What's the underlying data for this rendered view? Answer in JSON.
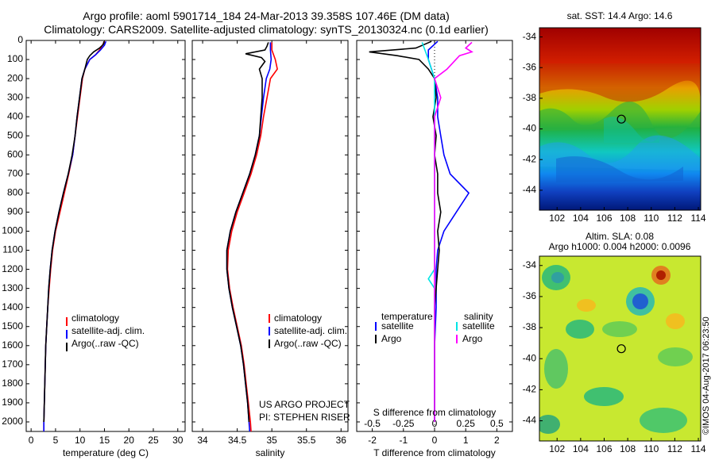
{
  "header": {
    "line1": "Argo profile: aoml 5901714_184 24-Mar-2013 39.358S 107.46E (DM data)",
    "line2": "Climatology: CARS2009. Satellite-adjusted climatology: synTS_20130324.nc (0.1d earlier)"
  },
  "colors": {
    "climatology": "#ff0000",
    "satellite": "#0000ff",
    "argo": "#000000",
    "sal_satellite": "#00e5e5",
    "sal_argo": "#ff00ff"
  },
  "chart_data": [
    {
      "type": "line",
      "id": "temperature",
      "xlabel": "temperature (deg C)",
      "ylabel": "",
      "xlim": [
        -1,
        31.5
      ],
      "ylim": [
        2050,
        0
      ],
      "xticks": [
        0,
        5,
        10,
        15,
        20,
        25,
        30
      ],
      "yticks": [
        0,
        100,
        200,
        300,
        400,
        500,
        600,
        700,
        800,
        900,
        1000,
        1100,
        1200,
        1300,
        1400,
        1500,
        1600,
        1700,
        1800,
        1900,
        2000
      ],
      "legend": [
        "climatology",
        "satellite-adj. clim.",
        "Argo(..raw -QC)"
      ],
      "series": [
        {
          "name": "climatology",
          "color": "#ff0000",
          "points": [
            [
              15.0,
              5
            ],
            [
              14.6,
              25
            ],
            [
              14.0,
              50
            ],
            [
              13.2,
              75
            ],
            [
              12.0,
              100
            ],
            [
              11.0,
              150
            ],
            [
              10.5,
              200
            ],
            [
              10.0,
              300
            ],
            [
              9.5,
              400
            ],
            [
              9.0,
              500
            ],
            [
              8.5,
              600
            ],
            [
              7.7,
              700
            ],
            [
              6.8,
              800
            ],
            [
              5.9,
              900
            ],
            [
              5.0,
              1000
            ],
            [
              4.4,
              1100
            ],
            [
              4.0,
              1200
            ],
            [
              3.7,
              1300
            ],
            [
              3.4,
              1400
            ],
            [
              3.2,
              1500
            ],
            [
              3.0,
              1600
            ],
            [
              2.9,
              1700
            ],
            [
              2.8,
              1800
            ],
            [
              2.7,
              1900
            ],
            [
              2.6,
              2000
            ],
            [
              2.6,
              2050
            ]
          ]
        },
        {
          "name": "satellite-adj. clim.",
          "color": "#0000ff",
          "points": [
            [
              15.3,
              5
            ],
            [
              15.0,
              25
            ],
            [
              14.2,
              50
            ],
            [
              13.2,
              75
            ],
            [
              12.0,
              100
            ],
            [
              11.0,
              150
            ],
            [
              10.4,
              200
            ],
            [
              9.9,
              300
            ],
            [
              9.4,
              400
            ],
            [
              9.0,
              500
            ],
            [
              8.5,
              600
            ],
            [
              7.6,
              700
            ],
            [
              6.6,
              800
            ],
            [
              5.7,
              900
            ],
            [
              4.9,
              1000
            ],
            [
              4.3,
              1100
            ],
            [
              3.9,
              1200
            ],
            [
              3.6,
              1300
            ],
            [
              3.4,
              1400
            ],
            [
              3.2,
              1500
            ],
            [
              3.0,
              1600
            ],
            [
              2.9,
              1700
            ],
            [
              2.8,
              1800
            ],
            [
              2.7,
              1900
            ],
            [
              2.6,
              2000
            ],
            [
              2.6,
              2050
            ]
          ]
        },
        {
          "name": "Argo(..raw -QC)",
          "color": "#000000",
          "points": [
            [
              14.9,
              5
            ],
            [
              14.8,
              20
            ],
            [
              14.0,
              40
            ],
            [
              12.8,
              60
            ],
            [
              12.0,
              80
            ],
            [
              11.5,
              100
            ],
            [
              11.0,
              150
            ],
            [
              10.4,
              200
            ],
            [
              9.9,
              300
            ],
            [
              9.4,
              400
            ],
            [
              9.0,
              500
            ],
            [
              8.4,
              600
            ],
            [
              7.6,
              700
            ],
            [
              6.6,
              800
            ],
            [
              5.7,
              900
            ],
            [
              4.9,
              1000
            ],
            [
              4.3,
              1100
            ],
            [
              3.9,
              1200
            ],
            [
              3.6,
              1300
            ],
            [
              3.4,
              1400
            ],
            [
              3.2,
              1500
            ],
            [
              3.0,
              1600
            ],
            [
              2.9,
              1700
            ],
            [
              2.8,
              1800
            ],
            [
              2.7,
              1900
            ],
            [
              2.6,
              2000
            ]
          ]
        }
      ]
    },
    {
      "type": "line",
      "id": "salinity",
      "xlabel": "salinity",
      "ylabel": "",
      "xlim": [
        33.85,
        36.1
      ],
      "ylim": [
        2050,
        0
      ],
      "xticks": [
        34,
        34.5,
        35,
        35.5,
        36
      ],
      "legend": [
        "climatology",
        "satellite-adj. clim.",
        "Argo(..raw -QC)"
      ],
      "series": [
        {
          "name": "climatology",
          "color": "#ff0000",
          "points": [
            [
              35.0,
              10
            ],
            [
              35.0,
              50
            ],
            [
              35.05,
              100
            ],
            [
              35.08,
              150
            ],
            [
              34.98,
              200
            ],
            [
              34.93,
              300
            ],
            [
              34.88,
              400
            ],
            [
              34.84,
              500
            ],
            [
              34.78,
              600
            ],
            [
              34.7,
              700
            ],
            [
              34.6,
              800
            ],
            [
              34.5,
              900
            ],
            [
              34.42,
              1000
            ],
            [
              34.37,
              1100
            ],
            [
              34.36,
              1200
            ],
            [
              34.39,
              1300
            ],
            [
              34.44,
              1400
            ],
            [
              34.5,
              1500
            ],
            [
              34.56,
              1600
            ],
            [
              34.6,
              1700
            ],
            [
              34.63,
              1800
            ],
            [
              34.66,
              1900
            ],
            [
              34.69,
              2000
            ],
            [
              34.7,
              2050
            ]
          ]
        },
        {
          "name": "satellite-adj. clim.",
          "color": "#0000ff",
          "points": [
            [
              34.98,
              10
            ],
            [
              34.98,
              50
            ],
            [
              34.99,
              100
            ],
            [
              34.97,
              150
            ],
            [
              34.92,
              200
            ],
            [
              34.88,
              300
            ],
            [
              34.85,
              400
            ],
            [
              34.82,
              500
            ],
            [
              34.76,
              600
            ],
            [
              34.68,
              700
            ],
            [
              34.58,
              800
            ],
            [
              34.48,
              900
            ],
            [
              34.4,
              1000
            ],
            [
              34.35,
              1100
            ],
            [
              34.35,
              1200
            ],
            [
              34.38,
              1300
            ],
            [
              34.43,
              1400
            ],
            [
              34.49,
              1500
            ],
            [
              34.55,
              1600
            ],
            [
              34.59,
              1700
            ],
            [
              34.62,
              1800
            ],
            [
              34.65,
              1900
            ],
            [
              34.67,
              2000
            ],
            [
              34.68,
              2050
            ]
          ]
        },
        {
          "name": "Argo(..raw -QC)",
          "color": "#000000",
          "points": [
            [
              34.95,
              10
            ],
            [
              34.93,
              30
            ],
            [
              34.9,
              50
            ],
            [
              34.62,
              70
            ],
            [
              34.85,
              90
            ],
            [
              34.9,
              110
            ],
            [
              34.82,
              150
            ],
            [
              34.86,
              200
            ],
            [
              34.86,
              300
            ],
            [
              34.84,
              400
            ],
            [
              34.82,
              500
            ],
            [
              34.76,
              600
            ],
            [
              34.68,
              700
            ],
            [
              34.58,
              800
            ],
            [
              34.48,
              900
            ],
            [
              34.4,
              1000
            ],
            [
              34.35,
              1100
            ],
            [
              34.35,
              1200
            ],
            [
              34.38,
              1300
            ],
            [
              34.43,
              1400
            ],
            [
              34.49,
              1500
            ],
            [
              34.55,
              1600
            ],
            [
              34.59,
              1700
            ],
            [
              34.62,
              1800
            ],
            [
              34.65,
              1900
            ],
            [
              34.67,
              2000
            ]
          ]
        }
      ]
    },
    {
      "type": "line",
      "id": "difference",
      "xlabel": "T difference from climatology",
      "ylabel": "",
      "top_label": "S difference from climatology",
      "xlim": [
        -2.5,
        2.5
      ],
      "ylim": [
        2050,
        0
      ],
      "xticks_T": [
        -2,
        -1,
        0,
        1,
        2
      ],
      "xticks_S": [
        "-0.5",
        "-0.25",
        "0",
        "0.25",
        "0.5"
      ],
      "legend_temperature_title": "temperature",
      "legend_salinity_title": "salinity",
      "legend": [
        "satellite",
        "Argo",
        "satellite",
        "Argo"
      ],
      "series": [
        {
          "name": "satellite",
          "group": "temperature",
          "color": "#0000ff",
          "points": [
            [
              0.1,
              5
            ],
            [
              -0.2,
              50
            ],
            [
              -0.2,
              100
            ],
            [
              0.0,
              200
            ],
            [
              0.1,
              300
            ],
            [
              0.1,
              400
            ],
            [
              0.2,
              500
            ],
            [
              0.3,
              600
            ],
            [
              0.5,
              700
            ],
            [
              1.1,
              800
            ],
            [
              0.7,
              900
            ],
            [
              0.3,
              1000
            ],
            [
              0.1,
              1100
            ],
            [
              0.05,
              1200
            ],
            [
              0.05,
              1400
            ],
            [
              0.0,
              1600
            ],
            [
              0.0,
              2000
            ]
          ]
        },
        {
          "name": "Argo",
          "group": "temperature",
          "color": "#000000",
          "points": [
            [
              -0.1,
              5
            ],
            [
              -0.6,
              40
            ],
            [
              -2.1,
              60
            ],
            [
              -1.2,
              80
            ],
            [
              -0.5,
              100
            ],
            [
              -0.2,
              150
            ],
            [
              0.0,
              200
            ],
            [
              0.05,
              300
            ],
            [
              -0.05,
              400
            ],
            [
              0.05,
              500
            ],
            [
              0.0,
              600
            ],
            [
              0.1,
              700
            ],
            [
              0.1,
              800
            ],
            [
              0.2,
              900
            ],
            [
              0.1,
              1000
            ],
            [
              0.15,
              1100
            ],
            [
              0.1,
              1200
            ],
            [
              0.05,
              1300
            ],
            [
              0.0,
              1400
            ],
            [
              0.0,
              1500
            ],
            [
              0.0,
              1700
            ],
            [
              0.0,
              2000
            ]
          ]
        },
        {
          "name": "satellite",
          "group": "salinity",
          "color": "#00e5e5",
          "points": [
            [
              -0.1,
              10
            ],
            [
              -0.05,
              100
            ],
            [
              0.0,
              200
            ],
            [
              0.0,
              400
            ],
            [
              0.0,
              600
            ],
            [
              0.0,
              800
            ],
            [
              0.0,
              1000
            ],
            [
              0.0,
              1200
            ],
            [
              -0.05,
              1250
            ],
            [
              0.0,
              1300
            ],
            [
              0.0,
              1600
            ],
            [
              0.0,
              2000
            ]
          ]
        },
        {
          "name": "Argo",
          "group": "salinity",
          "color": "#ff00ff",
          "points": [
            [
              0.3,
              10
            ],
            [
              0.25,
              40
            ],
            [
              0.3,
              60
            ],
            [
              0.2,
              80
            ],
            [
              0.1,
              150
            ],
            [
              0.0,
              200
            ],
            [
              0.05,
              300
            ],
            [
              0.0,
              400
            ],
            [
              0.0,
              600
            ],
            [
              0.0,
              800
            ],
            [
              0.0,
              1000
            ],
            [
              0.0,
              1200
            ],
            [
              0.0,
              1400
            ],
            [
              0.0,
              1600
            ],
            [
              0.0,
              2000
            ]
          ]
        }
      ]
    },
    {
      "type": "heatmap",
      "id": "sst",
      "title": "sat. SST: 14.4  Argo: 14.6",
      "xlim": [
        100.5,
        114.2
      ],
      "ylim": [
        -45.3,
        -33.4
      ],
      "xticks": [
        102,
        104,
        106,
        108,
        110,
        112,
        114
      ],
      "yticks": [
        -34,
        -36,
        -38,
        -40,
        -42,
        -44
      ],
      "marker": {
        "lon": 107.46,
        "lat": -39.36
      }
    },
    {
      "type": "heatmap",
      "id": "sla",
      "title": "Altim. SLA: 0.08",
      "subtitle": "Argo h1000: 0.004 h2000: 0.0096",
      "xlim": [
        100.5,
        114.2
      ],
      "ylim": [
        -45.3,
        -33.4
      ],
      "xticks": [
        102,
        104,
        106,
        108,
        110,
        112,
        114
      ],
      "yticks": [
        -34,
        -36,
        -38,
        -40,
        -42,
        -44
      ],
      "marker": {
        "lon": 107.46,
        "lat": -39.36
      }
    }
  ],
  "annotations": {
    "project_line1": "US ARGO PROJECT",
    "project_line2": "PI: STEPHEN RISER",
    "credit": "©IMOS 04-Aug-2017 06:23:50"
  }
}
